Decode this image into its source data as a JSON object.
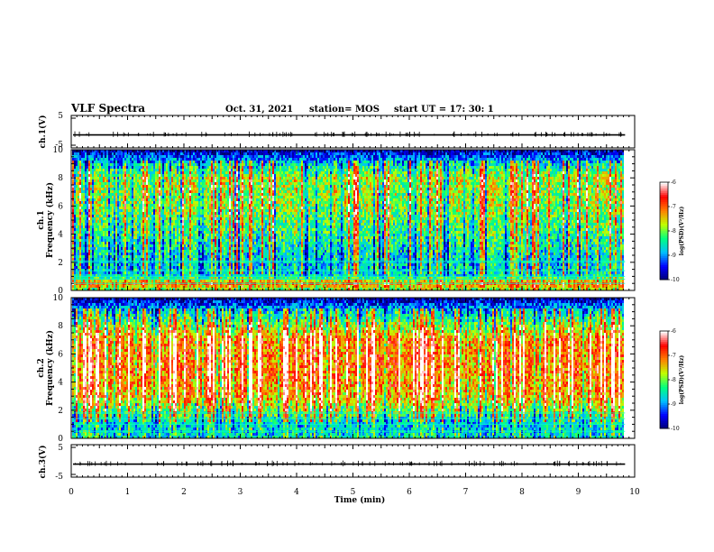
{
  "header": {
    "title": "VLF Spectra",
    "date": "Oct. 31, 2021",
    "station": "station= MOS",
    "start": "start  UT =   17: 30: 1"
  },
  "colors": {
    "spectrum": [
      "#000070",
      "#0000ff",
      "#00c0ff",
      "#00ff80",
      "#c0ff00",
      "#ff8000",
      "#ff0000",
      "#ffffff"
    ]
  },
  "chart_data": [
    {
      "type": "line",
      "name": "ch1-waveform",
      "ylabel": "ch.1(V)",
      "ylim": [
        -5,
        5
      ],
      "y_ticks": [
        "5",
        "-5"
      ],
      "xlim": [
        0,
        10
      ],
      "level": -1
    },
    {
      "type": "heatmap",
      "name": "ch1-spectrogram",
      "ylabel": "ch.1\nFrequency (kHz)",
      "ylim": [
        0,
        10
      ],
      "y_ticks": [
        "0",
        "2",
        "4",
        "6",
        "8",
        "10"
      ],
      "xlim": [
        0,
        10
      ],
      "data_end_min": 9.83,
      "colorbar": {
        "label": "log(PSD)(V²/Hz)",
        "range": [
          -10,
          -6
        ],
        "ticks": [
          "-6",
          "-7",
          "-8",
          "-9",
          "-10"
        ]
      },
      "intensity_profile": [
        {
          "f": 0.0,
          "v": -8.0
        },
        {
          "f": 0.5,
          "v": -7.0
        },
        {
          "f": 1.0,
          "v": -8.6
        },
        {
          "f": 2.0,
          "v": -8.7
        },
        {
          "f": 4.0,
          "v": -8.3
        },
        {
          "f": 6.0,
          "v": -7.9
        },
        {
          "f": 8.0,
          "v": -7.8
        },
        {
          "f": 9.0,
          "v": -8.6
        },
        {
          "f": 10.0,
          "v": -9.8
        }
      ],
      "hum_lines_khz": [
        0.5,
        0.8,
        1.0,
        1.4,
        2.0,
        2.1
      ]
    },
    {
      "type": "heatmap",
      "name": "ch2-spectrogram",
      "ylabel": "ch.2\nFrequency (kHz)",
      "ylim": [
        0,
        10
      ],
      "y_ticks": [
        "0",
        "2",
        "4",
        "6",
        "8",
        "10"
      ],
      "xlim": [
        0,
        10
      ],
      "data_end_min": 9.83,
      "colorbar": {
        "label": "log(PSD)(V²/Hz)",
        "range": [
          -10,
          -6
        ],
        "ticks": [
          "-6",
          "-7",
          "-8",
          "-9",
          "-10"
        ]
      },
      "intensity_profile": [
        {
          "f": 0.0,
          "v": -8.6
        },
        {
          "f": 1.0,
          "v": -8.8
        },
        {
          "f": 2.0,
          "v": -8.0
        },
        {
          "f": 3.0,
          "v": -7.3
        },
        {
          "f": 5.0,
          "v": -7.0
        },
        {
          "f": 7.0,
          "v": -7.1
        },
        {
          "f": 8.0,
          "v": -7.9
        },
        {
          "f": 9.0,
          "v": -8.7
        },
        {
          "f": 10.0,
          "v": -9.8
        }
      ],
      "hum_lines_khz": [
        0.5,
        1.0,
        1.4,
        1.8
      ]
    },
    {
      "type": "line",
      "name": "ch3-waveform",
      "ylabel": "ch.3(V)",
      "ylim": [
        -5,
        5
      ],
      "y_ticks": [
        "5",
        "-5"
      ],
      "xlim": [
        0,
        10
      ],
      "level": -1
    }
  ],
  "x_axis": {
    "label": "Time  (min)",
    "ticks": [
      "0",
      "1",
      "2",
      "3",
      "4",
      "5",
      "6",
      "7",
      "8",
      "9",
      "10"
    ],
    "range": [
      0,
      10
    ]
  }
}
